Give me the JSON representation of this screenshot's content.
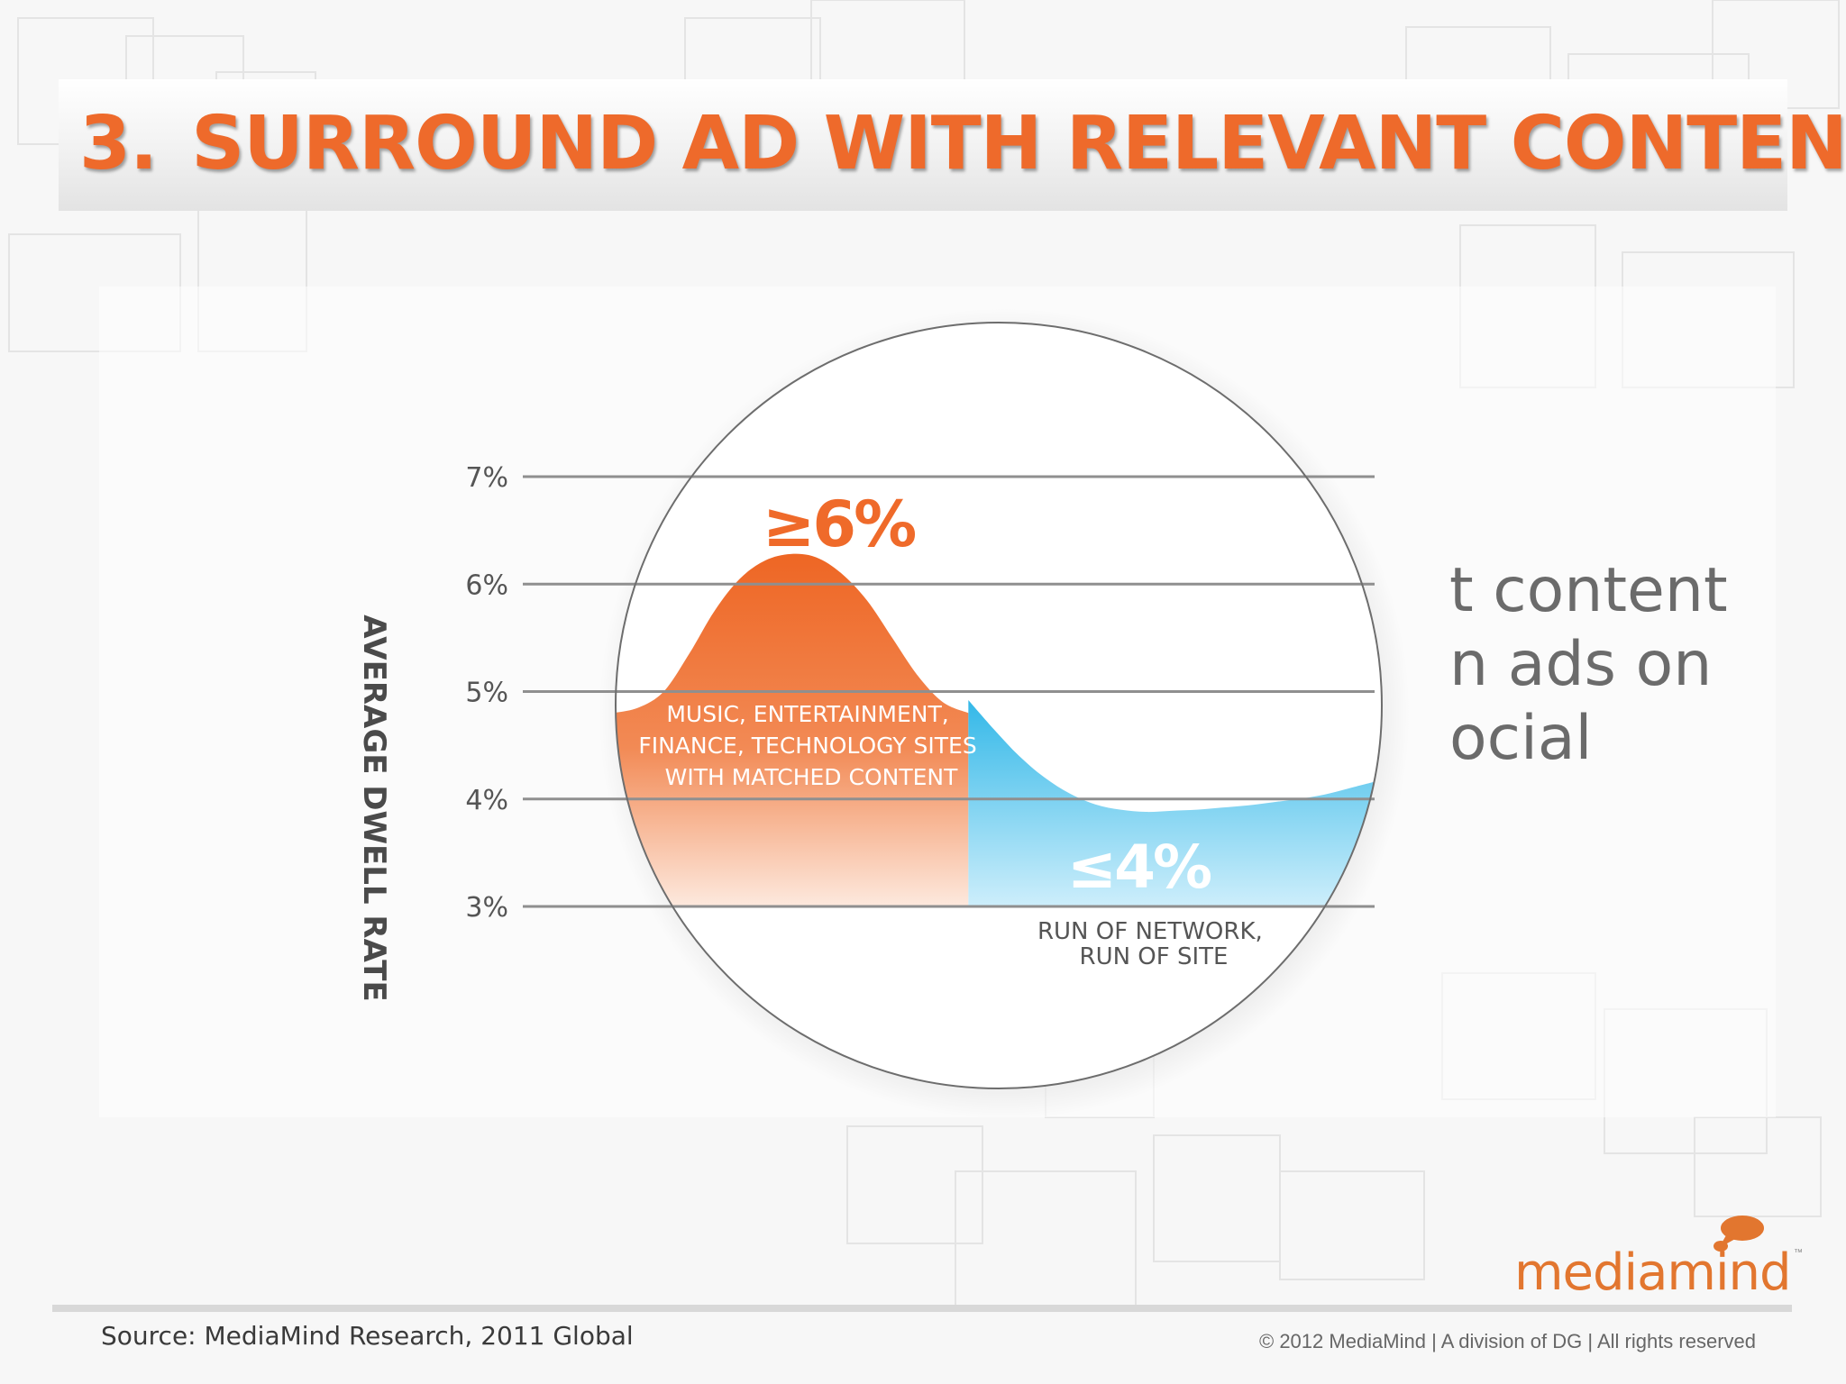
{
  "slide": {
    "title_number": "3.",
    "title_text": "SURROUND AD WITH RELEVANT CONTENT",
    "body_lines": [
      "t content",
      "n ads on",
      "ocial"
    ],
    "source": "Source: MediaMind Research, 2011 Global",
    "copyright": "© 2012 MediaMind | A division of DG | All rights reserved",
    "logo_text": "mediamind",
    "logo_tm": "™"
  },
  "colors": {
    "title": "#ee6a2b",
    "matched": "#ef6a2a",
    "run_of_network": "#3cbde9",
    "gridline": "#8f8f8f",
    "label": "#555555"
  },
  "chart_data": {
    "type": "area",
    "ylabel": "AVERAGE DWELL RATE",
    "xlabel": "",
    "yticks": [
      "7%",
      "6%",
      "5%",
      "4%",
      "3%"
    ],
    "ylim": [
      3,
      7
    ],
    "grid": true,
    "series": [
      {
        "name": "MUSIC, ENTERTAINMENT, FINANCE, TECHNOLOGY SITES WITH MATCHED CONTENT",
        "label_lines": [
          "MUSIC, ENTERTAINMENT,",
          "FINANCE, TECHNOLOGY SITES",
          "WITH MATCHED CONTENT"
        ],
        "annotation": "≥6%",
        "color": "#ef6a2a",
        "x": [
          0,
          0.1,
          0.2,
          0.3,
          0.4,
          0.5,
          0.6,
          0.7,
          0.8,
          0.9,
          1.0,
          1.1,
          1.2,
          1.3,
          1.4,
          1.5,
          1.6,
          1.7,
          1.8,
          1.9,
          2.0
        ],
        "values": [
          4.8,
          4.85,
          5.0,
          5.35,
          5.75,
          6.05,
          6.22,
          6.28,
          6.25,
          6.1,
          5.85,
          5.5,
          5.15,
          4.9,
          4.8,
          4.75,
          4.73,
          4.72,
          4.72,
          4.72,
          4.72
        ]
      },
      {
        "name": "RUN OF NETWORK, RUN OF SITE",
        "label_lines": [
          "RUN OF NETWORK,",
          "RUN OF SITE"
        ],
        "annotation": "≤4%",
        "color": "#3cbde9",
        "x": [
          1.4,
          1.5,
          1.6,
          1.7,
          1.8,
          1.9,
          2.0,
          2.1,
          2.2,
          2.3,
          2.4,
          2.5,
          2.6,
          2.7,
          2.8,
          2.9,
          3.0
        ],
        "values": [
          4.92,
          4.65,
          4.4,
          4.2,
          4.05,
          3.95,
          3.9,
          3.88,
          3.89,
          3.9,
          3.92,
          3.94,
          3.97,
          4.0,
          4.04,
          4.1,
          4.16
        ]
      }
    ]
  }
}
